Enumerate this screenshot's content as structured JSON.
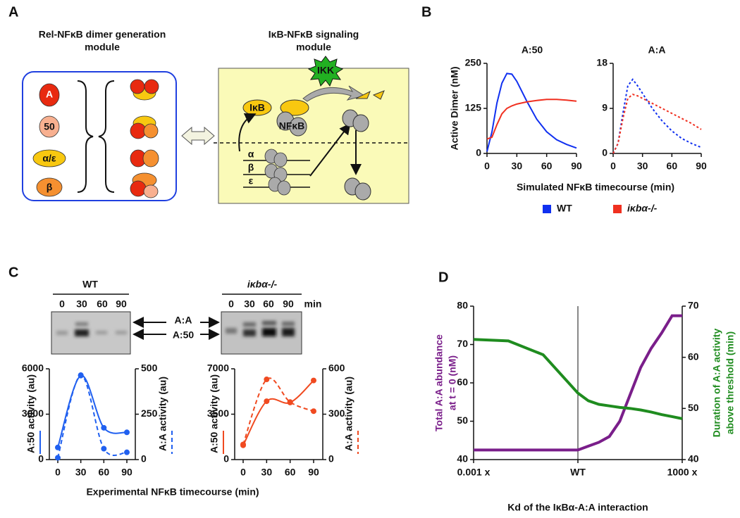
{
  "panel_labels": [
    "A",
    "B",
    "C",
    "D"
  ],
  "diagram": {
    "left_title": [
      "Rel-NFκB dimer generation",
      "module"
    ],
    "monomers": [
      "A",
      "50",
      "α/ε",
      "β"
    ],
    "right_title": [
      "IκB-NFκB signaling",
      "module"
    ],
    "ikk": "IKK",
    "ikb": "IκB",
    "nfkb": "NFκB",
    "genes": [
      "α",
      "β",
      "ε"
    ]
  },
  "gel": {
    "groups": [
      "WT",
      "iκbα-/-"
    ],
    "lanes": [
      [
        "0",
        "30",
        "60",
        "90"
      ],
      [
        "0",
        "30",
        "60",
        "90"
      ]
    ],
    "unit": "min",
    "bands": [
      "A:A",
      "A:50"
    ]
  },
  "chart_data": [
    {
      "type": "line",
      "title": "A:50",
      "x": [
        0,
        5,
        10,
        15,
        20,
        25,
        30,
        40,
        50,
        60,
        70,
        80,
        90
      ],
      "xlim": [
        0,
        90
      ],
      "xticks": [
        0,
        30,
        60,
        90
      ],
      "ylim": [
        0,
        250
      ],
      "yticks": [
        0,
        125,
        250
      ],
      "ylabel": "Active Dimer (nM)",
      "xlabel": "Simulated NFκB timecourse (min)",
      "legend": "bottom",
      "series": [
        {
          "name": "WT",
          "color": "#1030f0",
          "values": [
            5,
            60,
            140,
            195,
            222,
            220,
            200,
            145,
            95,
            60,
            38,
            25,
            15
          ]
        },
        {
          "name": "iκbα-/-",
          "color": "#f03020",
          "values": [
            40,
            45,
            80,
            110,
            125,
            132,
            137,
            143,
            147,
            150,
            150,
            148,
            145
          ]
        }
      ]
    },
    {
      "type": "line",
      "title": "A:A",
      "x": [
        0,
        5,
        10,
        15,
        20,
        25,
        30,
        40,
        50,
        60,
        70,
        80,
        90
      ],
      "xlim": [
        0,
        90
      ],
      "xticks": [
        0,
        30,
        60,
        90
      ],
      "ylim": [
        0,
        18
      ],
      "yticks": [
        0,
        9,
        18
      ],
      "series": [
        {
          "color": "#1030f0",
          "style": "dotted",
          "values": [
            0,
            2,
            8,
            13.5,
            14.8,
            13.5,
            12,
            9,
            6.5,
            4.5,
            3,
            2,
            1.2
          ]
        },
        {
          "color": "#f03020",
          "style": "dotted",
          "values": [
            0,
            2,
            7,
            11,
            11.8,
            11.5,
            11,
            10,
            9,
            8,
            7,
            6,
            4.8
          ]
        }
      ]
    },
    {
      "type": "line",
      "x": [
        0,
        30,
        60,
        90
      ],
      "xlim": [
        0,
        90
      ],
      "xticks": [
        0,
        30,
        60,
        90
      ],
      "ylim": [
        0,
        6000
      ],
      "yticks": [
        0,
        3000,
        6000
      ],
      "y2lim": [
        0,
        500
      ],
      "y2ticks": [
        0,
        250,
        500
      ],
      "ylabel": "A:50 activity (au)",
      "y2label": "A:A activity (au)",
      "xlabel": "Experimental NFκB timecourse (min)",
      "smooth": true,
      "markers": true,
      "series": [
        {
          "color": "#2060f0",
          "values": [
            800,
            5550,
            2100,
            1800
          ]
        },
        {
          "color": "#2060f0",
          "style": "dashed",
          "axis": "y2",
          "values": [
            10,
            465,
            60,
            40
          ]
        }
      ]
    },
    {
      "type": "line",
      "x": [
        0,
        30,
        60,
        90
      ],
      "xlim": [
        0,
        90
      ],
      "xticks": [
        0,
        30,
        60,
        90
      ],
      "ylim": [
        0,
        7000
      ],
      "yticks": [
        0,
        3500,
        7000
      ],
      "y2lim": [
        0,
        600
      ],
      "y2ticks": [
        0,
        300,
        600
      ],
      "ylabel": "A:50 activity (au)",
      "y2label": "A:A activity (au)",
      "smooth": true,
      "markers": true,
      "series": [
        {
          "color": "#f04a20",
          "values": [
            1100,
            4500,
            4400,
            6100
          ]
        },
        {
          "color": "#f04a20",
          "style": "dashed",
          "axis": "y2",
          "values": [
            100,
            530,
            380,
            320
          ]
        }
      ]
    },
    {
      "type": "line",
      "xscale": "log",
      "x": [
        0.001,
        0.01,
        0.1,
        1,
        2,
        4,
        8,
        16,
        32,
        64,
        128,
        256,
        512,
        1000
      ],
      "xlim": [
        0.001,
        1000
      ],
      "xticks": [
        {
          "value": 0.001,
          "label": "0.001 x"
        },
        {
          "value": 1,
          "label": "WT"
        },
        {
          "value": 1000,
          "label": "1000 x"
        }
      ],
      "xgrid": true,
      "ylim": [
        40,
        80
      ],
      "yticks": [
        40,
        50,
        60,
        70,
        80
      ],
      "y2lim": [
        40,
        70
      ],
      "y2ticks": [
        40,
        50,
        60,
        70
      ],
      "ylabel": [
        "Total A:A abundance",
        "at t = 0 (nM)"
      ],
      "y2label": [
        "Duration of A:A activity",
        "above threshold (min)"
      ],
      "xlabel": "Kd of the IκBα-A:A interaction",
      "series": [
        {
          "color": "#7a1e8a",
          "values": [
            42.5,
            42.5,
            42.5,
            42.5,
            43.5,
            44.5,
            46,
            50,
            57,
            64,
            69,
            73,
            77.5,
            77.5
          ]
        },
        {
          "color": "#1f8c1f",
          "axis": "y2",
          "values": [
            63.5,
            63.2,
            60.5,
            53,
            51.5,
            50.8,
            50.5,
            50.2,
            50,
            49.7,
            49.3,
            48.8,
            48.4,
            48
          ]
        }
      ]
    }
  ]
}
